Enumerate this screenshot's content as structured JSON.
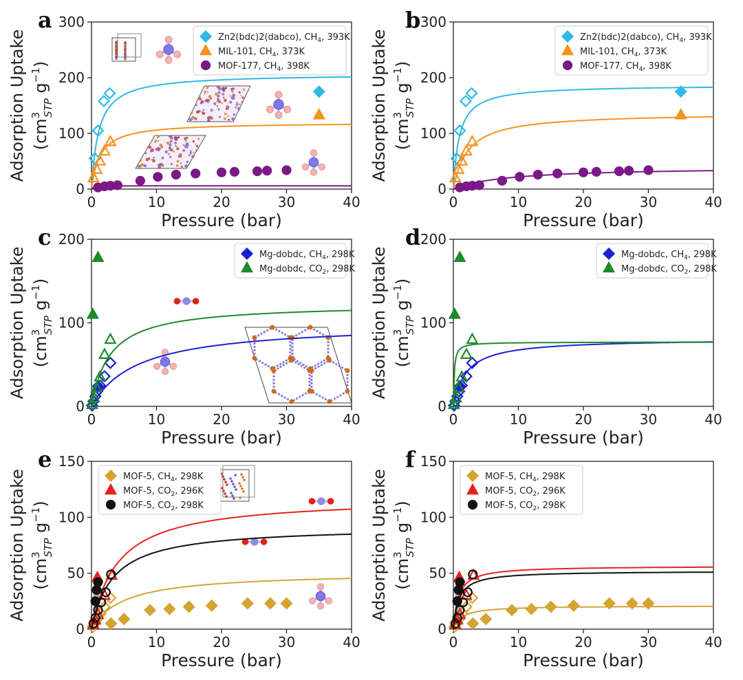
{
  "figure": {
    "ylabel_main": "Adsorption Uptake",
    "ylabel_unit": "(cm",
    "ylabel_sup": "3",
    "ylabel_sub": "STP",
    "ylabel_tail": "g",
    "ylabel_exp": "−1",
    "ylabel_close": ")"
  },
  "colors": {
    "zn": "#2fb8e8",
    "mil": "#f6921e",
    "mof177": "#7a1a86",
    "mgch4": "#1c1fd6",
    "mgco2": "#1f8a2a",
    "mof5ch4": "#d4a431",
    "mof5co2_296": "#e8201e",
    "mof5co2_298": "#111111"
  },
  "chart_data": [
    {
      "panel": "a",
      "type": "scatter",
      "xlabel": "Pressure (bar)",
      "xlim": [
        0,
        40
      ],
      "ylim": [
        0,
        300
      ],
      "xticks": [
        0,
        10,
        20,
        30,
        40
      ],
      "yticks": [
        0,
        100,
        200,
        300
      ],
      "legend": "top-right",
      "insets": [
        "Zn2(bdc)2(dabco) unit cell",
        "MIL-101 unit cell",
        "MOF-177 unit cell",
        "CH4 molecule",
        "CH4 molecule",
        "CH4 molecule"
      ],
      "series": [
        {
          "name": "Zn2(bdc)2(dabco), CH4, 393K",
          "label_main": "Zn2(bdc)2(dabco), CH",
          "label_sub": "4",
          "label_tail": ", 393K",
          "color_key": "zn",
          "marker": "diamond",
          "open_x": [
            0.5,
            1.0,
            1.9,
            2.8
          ],
          "open_y": [
            55,
            105,
            158,
            172
          ],
          "filled_x": [
            35
          ],
          "filled_y": [
            175
          ],
          "fit": {
            "qmax": 207,
            "b": 0.9
          }
        },
        {
          "name": "MIL-101, CH4, 373K",
          "label_main": "MIL-101, CH",
          "label_sub": "4",
          "label_tail": ", 373K",
          "color_key": "mil",
          "marker": "triangle",
          "open_x": [
            0.3,
            0.8,
            1.3,
            2.0,
            2.9
          ],
          "open_y": [
            20,
            35,
            50,
            68,
            85
          ],
          "filled_x": [
            35
          ],
          "filled_y": [
            133
          ],
          "fit": {
            "qmax": 120,
            "b": 0.75
          }
        },
        {
          "name": "MOF-177, CH4, 398K",
          "label_main": "MOF-177, CH",
          "label_sub": "4",
          "label_tail": ", 398K",
          "color_key": "mof177",
          "marker": "circle",
          "open_x": [],
          "open_y": [],
          "filled_x": [
            1.0,
            2.0,
            2.9,
            4.0,
            7.5,
            10.2,
            13.0,
            16.0,
            20.0,
            22.0,
            25.5,
            27.0,
            30.0
          ],
          "filled_y": [
            3,
            5,
            6,
            7,
            15,
            22,
            26,
            28,
            30,
            31,
            32,
            33,
            34
          ],
          "fit": {
            "qmax": 6,
            "b": 3.0
          }
        }
      ]
    },
    {
      "panel": "b",
      "type": "scatter",
      "xlabel": "Pressure (bar)",
      "xlim": [
        0,
        40
      ],
      "ylim": [
        0,
        300
      ],
      "xticks": [
        0,
        10,
        20,
        30,
        40
      ],
      "yticks": [
        0,
        100,
        200,
        300
      ],
      "legend": "top-right",
      "series": [
        {
          "name": "Zn2(bdc)2(dabco), CH4, 393K",
          "label_main": "Zn2(bdc)2(dabco), CH",
          "label_sub": "4",
          "label_tail": ", 393K",
          "color_key": "zn",
          "marker": "diamond",
          "open_x": [
            0.5,
            1.0,
            1.9,
            2.8
          ],
          "open_y": [
            55,
            105,
            158,
            172
          ],
          "filled_x": [
            35
          ],
          "filled_y": [
            175
          ],
          "fit": {
            "qmax": 187,
            "b": 1.1
          }
        },
        {
          "name": "MIL-101, CH4, 373K",
          "label_main": "MIL-101, CH",
          "label_sub": "4",
          "label_tail": ", 373K",
          "color_key": "mil",
          "marker": "triangle",
          "open_x": [
            0.3,
            0.8,
            1.3,
            2.0,
            2.9
          ],
          "open_y": [
            20,
            35,
            50,
            68,
            85
          ],
          "filled_x": [
            35
          ],
          "filled_y": [
            133
          ],
          "fit": {
            "qmax": 137,
            "b": 0.45
          }
        },
        {
          "name": "MOF-177, CH4, 398K",
          "label_main": "MOF-177, CH",
          "label_sub": "4",
          "label_tail": ", 398K",
          "color_key": "mof177",
          "marker": "circle",
          "open_x": [],
          "open_y": [],
          "filled_x": [
            1.0,
            2.0,
            2.9,
            4.0,
            7.5,
            10.2,
            13.0,
            16.0,
            20.0,
            22.0,
            25.5,
            27.0,
            30.0
          ],
          "filled_y": [
            3,
            5,
            6,
            7,
            15,
            22,
            26,
            28,
            30,
            31,
            32,
            33,
            34
          ],
          "fit": {
            "qmax": 40,
            "b": 0.12
          }
        }
      ]
    },
    {
      "panel": "c",
      "type": "scatter",
      "xlabel": "Pressure (bar)",
      "xlim": [
        0,
        40
      ],
      "ylim": [
        0,
        200
      ],
      "xticks": [
        0,
        10,
        20,
        30,
        40
      ],
      "yticks": [
        0,
        100,
        200
      ],
      "legend": "top-right",
      "insets": [
        "Mg-dobdc honeycomb framework",
        "CO2 molecule",
        "CH4 molecule"
      ],
      "series": [
        {
          "name": "Mg-dobdc, CH4, 298K",
          "label_main": "Mg-dobdc, CH",
          "label_sub": "4",
          "label_tail": ", 298K",
          "color_key": "mgch4",
          "marker": "diamond",
          "open_x": [
            0.1,
            0.3,
            0.6,
            0.9,
            1.3,
            2.0,
            2.9
          ],
          "open_y": [
            1,
            6,
            12,
            18,
            25,
            36,
            52
          ],
          "filled_x": [
            1.0
          ],
          "filled_y": [
            24
          ],
          "fit": {
            "qmax": 100,
            "b": 0.14
          }
        },
        {
          "name": "Mg-dobdc, CO2, 298K",
          "label_main": "Mg-dobdc, CO",
          "label_sub": "2",
          "label_tail": ", 298K",
          "color_key": "mgco2",
          "marker": "triangle",
          "open_x": [
            0.1,
            0.4,
            0.8,
            1.3,
            2.0,
            2.9
          ],
          "open_y": [
            2,
            10,
            22,
            35,
            62,
            80
          ],
          "filled_x": [
            0.2,
            1.0
          ],
          "filled_y": [
            110,
            178
          ],
          "fit": {
            "qmax": 123,
            "b": 0.35
          }
        }
      ]
    },
    {
      "panel": "d",
      "type": "scatter",
      "xlabel": "Pressure (bar)",
      "xlim": [
        0,
        40
      ],
      "ylim": [
        0,
        200
      ],
      "xticks": [
        0,
        10,
        20,
        30,
        40
      ],
      "yticks": [
        0,
        100,
        200
      ],
      "legend": "top-right",
      "series": [
        {
          "name": "Mg-dobdc, CH4, 298K",
          "label_main": "Mg-dobdc, CH",
          "label_sub": "4",
          "label_tail": ", 298K",
          "color_key": "mgch4",
          "marker": "diamond",
          "open_x": [
            0.1,
            0.3,
            0.6,
            0.9,
            1.3,
            2.0,
            2.9
          ],
          "open_y": [
            1,
            6,
            12,
            18,
            25,
            36,
            52
          ],
          "filled_x": [
            1.0
          ],
          "filled_y": [
            24
          ],
          "fit": {
            "qmax": 81,
            "b": 0.5
          }
        },
        {
          "name": "Mg-dobdc, CO2, 298K",
          "label_main": "Mg-dobdc, CO",
          "label_sub": "2",
          "label_tail": ", 298K",
          "color_key": "mgco2",
          "marker": "triangle",
          "open_x": [
            0.1,
            0.4,
            0.8,
            1.3,
            2.0,
            2.9
          ],
          "open_y": [
            2,
            10,
            22,
            35,
            62,
            80
          ],
          "filled_x": [
            0.2,
            1.0
          ],
          "filled_y": [
            110,
            178
          ],
          "fit": {
            "qmax": 77,
            "b": 8.0
          }
        }
      ]
    },
    {
      "panel": "e",
      "type": "scatter",
      "xlabel": "Pressure (bar)",
      "xlim": [
        0,
        40
      ],
      "ylim": [
        0,
        150
      ],
      "xticks": [
        0,
        10,
        20,
        30,
        40
      ],
      "yticks": [
        0,
        50,
        100,
        150
      ],
      "legend": "top-left",
      "insets": [
        "MOF-5 unit cell",
        "CO2 molecule",
        "CO2 molecule",
        "CH4 molecule"
      ],
      "series": [
        {
          "name": "MOF-5, CH4, 298K",
          "label_main": "MOF-5, CH",
          "label_sub": "4",
          "label_tail": ", 298K",
          "color_key": "mof5ch4",
          "marker": "diamond",
          "open_x": [
            0.2,
            0.5,
            0.9,
            1.4,
            2.0,
            2.9
          ],
          "open_y": [
            2,
            5,
            9,
            14,
            20,
            28
          ],
          "filled_x": [
            3.0,
            5.0,
            9.0,
            12.0,
            15.0,
            18.5,
            24.0,
            27.5,
            30.0
          ],
          "filled_y": [
            5,
            9,
            17,
            18,
            20,
            21,
            23,
            23,
            23
          ],
          "fit": {
            "qmax": 51,
            "b": 0.2
          }
        },
        {
          "name": "MOF-5, CO2, 296K",
          "label_main": "MOF-5, CO",
          "label_sub": "2",
          "label_tail": ", 296K",
          "color_key": "mof5co2_296",
          "marker": "triangle",
          "open_x": [
            0.3,
            0.6,
            1.0,
            2.0,
            3.1
          ],
          "open_y": [
            4,
            8,
            13,
            30,
            48
          ],
          "filled_x": [
            0.9
          ],
          "filled_y": [
            46
          ],
          "fit": {
            "qmax": 118,
            "b": 0.25
          }
        },
        {
          "name": "MOF-5, CO2, 298K",
          "label_main": "MOF-5, CO",
          "label_sub": "2",
          "label_tail": ", 298K",
          "color_key": "mof5co2_298",
          "marker": "circle",
          "open_x": [
            0.3,
            0.6,
            1.0,
            1.5,
            2.2,
            3.0
          ],
          "open_y": [
            5,
            10,
            17,
            24,
            33,
            49
          ],
          "filled_x": [
            0.6,
            0.8,
            1.0
          ],
          "filled_y": [
            25,
            35,
            42
          ],
          "fit": {
            "qmax": 92,
            "b": 0.3
          }
        }
      ]
    },
    {
      "panel": "f",
      "type": "scatter",
      "xlabel": "Pressure (bar)",
      "xlim": [
        0,
        40
      ],
      "ylim": [
        0,
        150
      ],
      "xticks": [
        0,
        10,
        20,
        30,
        40
      ],
      "yticks": [
        0,
        50,
        100,
        150
      ],
      "legend": "top-left",
      "series": [
        {
          "name": "MOF-5, CH4, 298K",
          "label_main": "MOF-5, CH",
          "label_sub": "4",
          "label_tail": ", 298K",
          "color_key": "mof5ch4",
          "marker": "diamond",
          "open_x": [
            0.2,
            0.5,
            0.9,
            1.4,
            2.0,
            2.9
          ],
          "open_y": [
            2,
            5,
            9,
            14,
            20,
            28
          ],
          "filled_x": [
            3.0,
            5.0,
            9.0,
            12.0,
            15.0,
            18.5,
            24.0,
            27.5,
            30.0
          ],
          "filled_y": [
            5,
            9,
            17,
            18,
            20,
            21,
            23,
            23,
            23
          ],
          "fit": {
            "qmax": 21,
            "b": 0.8
          }
        },
        {
          "name": "MOF-5, CO2, 296K",
          "label_main": "MOF-5, CO",
          "label_sub": "2",
          "label_tail": ", 296K",
          "color_key": "mof5co2_296",
          "marker": "triangle",
          "open_x": [
            0.3,
            0.6,
            1.0,
            2.0,
            3.1
          ],
          "open_y": [
            4,
            8,
            13,
            30,
            48
          ],
          "filled_x": [
            0.9
          ],
          "filled_y": [
            46
          ],
          "fit": {
            "qmax": 56.5,
            "b": 1.3
          }
        },
        {
          "name": "MOF-5, CO2, 298K",
          "label_main": "MOF-5, CO",
          "label_sub": "2",
          "label_tail": ", 298K",
          "color_key": "mof5co2_298",
          "marker": "circle",
          "open_x": [
            0.3,
            0.6,
            1.0,
            1.5,
            2.2,
            3.0
          ],
          "open_y": [
            5,
            10,
            17,
            24,
            33,
            49
          ],
          "filled_x": [
            0.6,
            0.8,
            1.0
          ],
          "filled_y": [
            25,
            35,
            42
          ],
          "fit": {
            "qmax": 52,
            "b": 1.2
          }
        }
      ]
    }
  ]
}
